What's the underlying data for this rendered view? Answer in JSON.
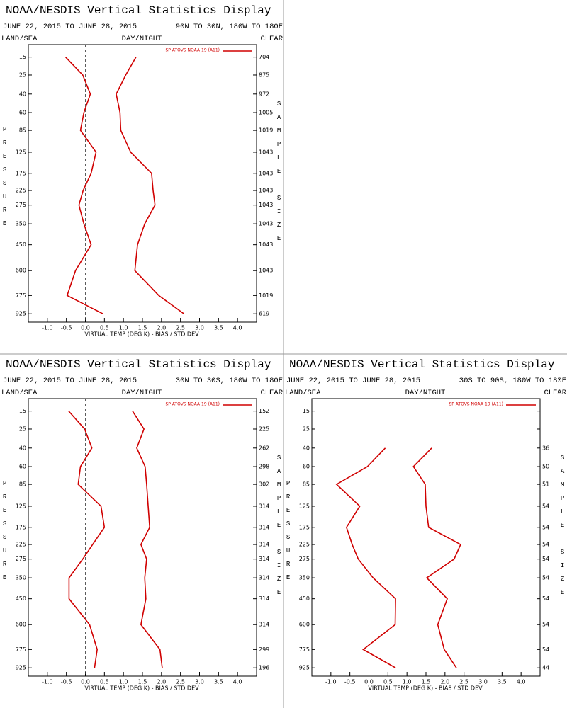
{
  "chart_data": [
    {
      "type": "line",
      "title": "NOAA/NESDIS Vertical Statistics Display",
      "date_range": "JUNE 22, 2015 TO JUNE 28, 2015",
      "region": "90N TO 30N, 180W TO 180E",
      "land_sea": "LAND/SEA",
      "day_night": "DAY/NIGHT",
      "sky": "CLEAR",
      "ylabel": "PRESSURE",
      "y2label": "SAMPLE SIZE",
      "xlabel": "VIRTUAL TEMP (DEG K) - BIAS / STD DEV",
      "xlim": [
        -1.5,
        4.5
      ],
      "xticks": [
        {
          "value": -1,
          "label": "-1.0"
        },
        -0.5,
        {
          "value": 0,
          "label": "0.0"
        },
        0.5,
        {
          "value": 1,
          "label": "1.0"
        },
        1.5,
        {
          "value": 2,
          "label": "2.0"
        },
        2.5,
        {
          "value": 3,
          "label": "3.0"
        },
        3.5,
        {
          "value": 4,
          "label": "4.0"
        }
      ],
      "ylim": [
        10,
        1000
      ],
      "yticks": [
        15,
        25,
        40,
        60,
        85,
        125,
        175,
        225,
        275,
        350,
        450,
        600,
        775,
        925
      ],
      "zero_line": true,
      "series": [
        {
          "name": "SP ATOVS NOAA-19 (A11)",
          "color": "#d00000",
          "bias": [
            -0.52,
            -0.07,
            0.13,
            -0.04,
            -0.13,
            0.28,
            0.15,
            -0.06,
            -0.17,
            -0.04,
            0.15,
            -0.26,
            -0.48,
            0.46
          ],
          "std_dev": [
            1.33,
            1.06,
            0.81,
            0.91,
            0.93,
            1.19,
            1.74,
            1.78,
            1.83,
            1.56,
            1.37,
            1.3,
            1.93,
            2.59
          ]
        }
      ],
      "sample_size": [
        704,
        875,
        972,
        1005,
        1019,
        1043,
        1043,
        1043,
        1043,
        1043,
        1043,
        1043,
        1019,
        619
      ]
    },
    {
      "type": "line",
      "title": "NOAA/NESDIS Vertical Statistics Display",
      "date_range": "JUNE 22, 2015 TO JUNE 28, 2015",
      "region": "30N TO 30S, 180W TO 180E",
      "land_sea": "LAND/SEA",
      "day_night": "DAY/NIGHT",
      "sky": "CLEAR",
      "ylabel": "PRESSURE",
      "y2label": "SAMPLE SIZE",
      "xlabel": "VIRTUAL TEMP (DEG K) - BIAS / STD DEV",
      "xlim": [
        -1.5,
        4.5
      ],
      "xticks": [
        {
          "value": -1,
          "label": "-1.0"
        },
        -0.5,
        {
          "value": 0,
          "label": "0.0"
        },
        0.5,
        {
          "value": 1,
          "label": "1.0"
        },
        1.5,
        {
          "value": 2,
          "label": "2.0"
        },
        2.5,
        {
          "value": 3,
          "label": "3.0"
        },
        3.5,
        {
          "value": 4,
          "label": "4.0"
        }
      ],
      "ylim": [
        10,
        1000
      ],
      "yticks": [
        15,
        25,
        40,
        60,
        85,
        125,
        175,
        225,
        275,
        350,
        450,
        600,
        775,
        925
      ],
      "zero_line": true,
      "series": [
        {
          "name": "SP ATOVS NOAA-19 (A11)",
          "color": "#d00000",
          "bias": [
            -0.44,
            -0.02,
            0.17,
            -0.13,
            -0.19,
            0.41,
            0.5,
            0.19,
            -0.07,
            -0.43,
            -0.43,
            0.11,
            0.31,
            0.24
          ],
          "std_dev": [
            1.24,
            1.54,
            1.35,
            1.57,
            1.61,
            1.65,
            1.69,
            1.46,
            1.61,
            1.56,
            1.59,
            1.46,
            1.96,
            2.02
          ]
        }
      ],
      "sample_size": [
        152,
        225,
        262,
        298,
        302,
        314,
        314,
        314,
        314,
        314,
        314,
        314,
        299,
        196
      ]
    },
    {
      "type": "line",
      "title": "NOAA/NESDIS Vertical Statistics Display",
      "date_range": "JUNE 22, 2015 TO JUNE 28, 2015",
      "region": "30S TO 90S, 180W TO 180E",
      "land_sea": "LAND/SEA",
      "day_night": "DAY/NIGHT",
      "sky": "CLEAR",
      "ylabel": "PRESSURE",
      "y2label": "SAMPLE SIZE",
      "xlabel": "VIRTUAL TEMP (DEG K) - BIAS / STD DEV",
      "xlim": [
        -1.5,
        4.5
      ],
      "xticks": [
        {
          "value": -1,
          "label": "-1.0"
        },
        -0.5,
        {
          "value": 0,
          "label": "0.0"
        },
        0.5,
        {
          "value": 1,
          "label": "1.0"
        },
        1.5,
        {
          "value": 2,
          "label": "2.0"
        },
        2.5,
        {
          "value": 3,
          "label": "3.0"
        },
        3.5,
        {
          "value": 4,
          "label": "4.0"
        }
      ],
      "ylim": [
        10,
        1000
      ],
      "yticks": [
        15,
        25,
        40,
        60,
        85,
        125,
        175,
        225,
        275,
        350,
        450,
        600,
        775,
        925
      ],
      "zero_line": true,
      "series": [
        {
          "name": "SP ATOVS NOAA-19 (A11)",
          "color": "#d00000",
          "bias": [
            null,
            null,
            0.43,
            -0.04,
            -0.85,
            -0.24,
            -0.59,
            -0.44,
            -0.28,
            0.11,
            0.7,
            0.69,
            -0.15,
            0.7
          ],
          "std_dev": [
            null,
            null,
            1.65,
            1.17,
            1.48,
            1.5,
            1.57,
            2.41,
            2.24,
            1.52,
            2.06,
            1.81,
            1.98,
            2.3
          ]
        }
      ],
      "sample_size": [
        null,
        null,
        36,
        50,
        51,
        54,
        54,
        54,
        54,
        54,
        54,
        54,
        54,
        44
      ]
    }
  ]
}
